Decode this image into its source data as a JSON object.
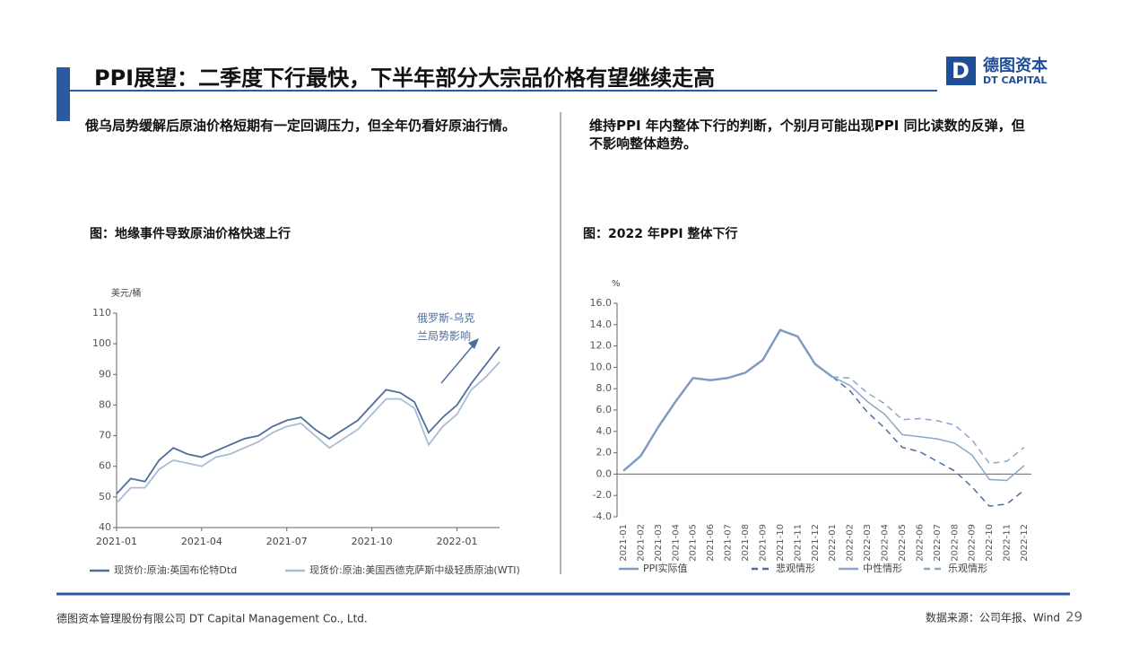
{
  "header": {
    "title": "PPI展望：二季度下行最快，下半年部分大宗品价格有望继续走高",
    "logo_cn": "德图资本",
    "logo_en": "DT CAPITAL"
  },
  "left_text": "俄乌局势缓解后原油价格短期有一定回调压力，但全年仍看好原油行情。",
  "right_text": "维持PPI 年内整体下行的判断，个别月可能出现PPI 同比读数的反弹，但不影响整体趋势。",
  "footer": {
    "company": "德图资本管理股份有限公司  DT Capital Management  Co., Ltd.",
    "source": "数据来源：公司年报、Wind",
    "page": "29"
  },
  "chart_data": [
    {
      "type": "line",
      "title": "图：地缘事件导致原油价格快速上行",
      "y_label": "美元/桶",
      "annotation": [
        "俄罗斯-乌克",
        "兰局势影响"
      ],
      "x": [
        0,
        0.5,
        1,
        1.5,
        2,
        2.5,
        3,
        3.5,
        4,
        4.5,
        5,
        5.5,
        6,
        6.5,
        7,
        7.5,
        8,
        8.5,
        9,
        9.5,
        10,
        10.5,
        11,
        11.5,
        12,
        12.5,
        13,
        13.5
      ],
      "series": [
        {
          "name": "现货价:原油:英国布伦特Dtd",
          "color": "#4d6d9a",
          "values": [
            51,
            56,
            55,
            62,
            66,
            64,
            63,
            65,
            67,
            69,
            70,
            73,
            75,
            76,
            72,
            69,
            72,
            75,
            80,
            85,
            84,
            81,
            71,
            76,
            80,
            87,
            93,
            99
          ]
        },
        {
          "name": "现货价:原油:美国西德克萨斯中级轻质原油(WTI)",
          "color": "#a9bcd6",
          "values": [
            48,
            53,
            53,
            59,
            62,
            61,
            60,
            63,
            64,
            66,
            68,
            71,
            73,
            74,
            70,
            66,
            69,
            72,
            77,
            82,
            82,
            79,
            67,
            73,
            77,
            85,
            89,
            94
          ]
        }
      ],
      "xlim": [
        0,
        13.5
      ],
      "xticks": [
        {
          "value": 0,
          "label": "2021-01"
        },
        {
          "value": 3,
          "label": "2021-04"
        },
        {
          "value": 6,
          "label": "2021-07"
        },
        {
          "value": 9,
          "label": "2021-10"
        },
        {
          "value": 12,
          "label": "2022-01"
        }
      ],
      "ylim": [
        40,
        110
      ],
      "yticks": [
        40,
        50,
        60,
        70,
        80,
        90,
        100,
        110
      ]
    },
    {
      "type": "line",
      "title": "图：2022 年PPI 整体下行",
      "y_label": "%",
      "categories": [
        "2021-01",
        "2021-02",
        "2021-03",
        "2021-04",
        "2021-05",
        "2021-06",
        "2021-07",
        "2021-08",
        "2021-09",
        "2021-10",
        "2021-11",
        "2021-12",
        "2022-01",
        "2022-02",
        "2022-03",
        "2022-04",
        "2022-05",
        "2022-06",
        "2022-07",
        "2022-08",
        "2022-09",
        "2022-10",
        "2022-11",
        "2022-12"
      ],
      "series": [
        {
          "name": "PPI实际值",
          "color": "#7f9cc0",
          "style": "solid",
          "width": 2.5,
          "values": [
            0.3,
            1.7,
            4.4,
            6.8,
            9.0,
            8.8,
            9.0,
            9.5,
            10.7,
            13.5,
            12.9,
            10.3,
            9.1,
            null,
            null,
            null,
            null,
            null,
            null,
            null,
            null,
            null,
            null,
            null
          ]
        },
        {
          "name": "悲观情形",
          "color": "#4a6fa0",
          "style": "dashed",
          "width": 1.5,
          "values": [
            null,
            null,
            null,
            null,
            null,
            null,
            null,
            null,
            null,
            null,
            null,
            null,
            9.1,
            7.8,
            5.8,
            4.3,
            2.5,
            2.1,
            1.2,
            0.3,
            -1.2,
            -3.0,
            -2.8,
            -1.5
          ]
        },
        {
          "name": "中性情形",
          "color": "#8aa6c9",
          "style": "solid",
          "width": 1.5,
          "values": [
            null,
            null,
            null,
            null,
            null,
            null,
            null,
            null,
            null,
            null,
            null,
            null,
            9.1,
            8.3,
            6.8,
            5.6,
            3.7,
            3.5,
            3.3,
            2.9,
            1.8,
            -0.5,
            -0.6,
            0.8
          ]
        },
        {
          "name": "乐观情形",
          "color": "#8aa6c9",
          "style": "dashed",
          "width": 1.5,
          "values": [
            null,
            null,
            null,
            null,
            null,
            null,
            null,
            null,
            null,
            null,
            null,
            null,
            9.1,
            9.0,
            7.6,
            6.6,
            5.1,
            5.2,
            5.0,
            4.6,
            3.2,
            1.0,
            1.2,
            2.5
          ]
        }
      ],
      "ylim": [
        -4,
        16
      ],
      "yticks": [
        {
          "value": -4,
          "label": "-4.0"
        },
        {
          "value": -2,
          "label": "-2.0"
        },
        {
          "value": 0,
          "label": "0.0"
        },
        {
          "value": 2,
          "label": "2.0"
        },
        {
          "value": 4,
          "label": "4.0"
        },
        {
          "value": 6,
          "label": "6.0"
        },
        {
          "value": 8,
          "label": "8.0"
        },
        {
          "value": 10,
          "label": "10.0"
        },
        {
          "value": 12,
          "label": "12.0"
        },
        {
          "value": 14,
          "label": "14.0"
        },
        {
          "value": 16,
          "label": "16.0"
        }
      ]
    }
  ]
}
